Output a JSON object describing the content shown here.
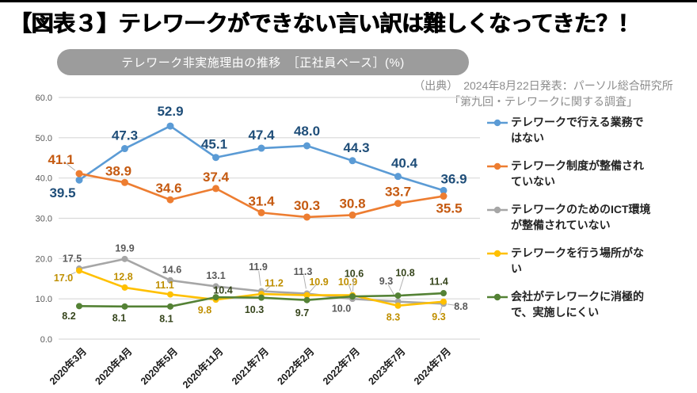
{
  "page": {
    "title": "【図表３】テレワークができない言い訳は難しくなってきた？！",
    "subtitle_pill": "テレワーク非実施理由の推移　［正社員ベース］(%)",
    "source_line1": "（出典）　2024年8月22日発表：パーソル総合研究所",
    "source_line2": "「第九回・テレワークに関する調査」",
    "colors": {
      "top_border": "#000000",
      "pill_bg": "#9C9C9C",
      "source_text": "#8C8C8C",
      "grid": "#D9D9D9",
      "axis_tick_text": "#595959",
      "x_tick_text": "#1A1A1A",
      "leader_line": "#B0B0B0"
    }
  },
  "chart_data": {
    "type": "line",
    "title": "テレワーク非実施理由の推移［正社員ベース］(%)",
    "categories": [
      "2020年3月",
      "2020年4月",
      "2020年5月",
      "2020年11月",
      "2021年7月",
      "2022年2月",
      "2022年7月",
      "2023年7月",
      "2024年7月"
    ],
    "ylim": [
      0,
      60
    ],
    "ytick_step": 10,
    "ytick_labels": [
      "0.0",
      "10.0",
      "20.0",
      "30.0",
      "40.0",
      "50.0",
      "60.0"
    ],
    "grid": true,
    "legend_position": "right",
    "series": [
      {
        "name": "テレワークで行える業務ではない",
        "color": "#5B9BD5",
        "label_color": "#1F4E79",
        "values": [
          39.5,
          47.3,
          52.9,
          45.1,
          47.4,
          48.0,
          44.3,
          40.4,
          36.9
        ]
      },
      {
        "name": "テレワーク制度が整備されていない",
        "color": "#ED7D31",
        "label_color": "#C55A11",
        "values": [
          41.1,
          38.9,
          34.6,
          37.4,
          31.4,
          30.3,
          30.8,
          33.7,
          35.5
        ]
      },
      {
        "name": "テレワークのためのICT環境が整備されていない",
        "color": "#A6A6A6",
        "label_color": "#595959",
        "values": [
          17.5,
          19.9,
          14.6,
          13.1,
          11.9,
          11.3,
          10.0,
          9.3,
          8.8
        ]
      },
      {
        "name": "テレワークを行う場所がない",
        "color": "#FFC000",
        "label_color": "#BF8F00",
        "values": [
          17.0,
          12.8,
          11.1,
          9.8,
          11.2,
          10.9,
          10.9,
          8.3,
          9.3
        ]
      },
      {
        "name": "会社がテレワークに消極的で、実施しにくい",
        "color": "#548235",
        "label_color": "#36451C",
        "values": [
          8.2,
          8.1,
          8.1,
          10.4,
          10.3,
          9.7,
          10.6,
          10.8,
          11.4
        ]
      }
    ]
  }
}
